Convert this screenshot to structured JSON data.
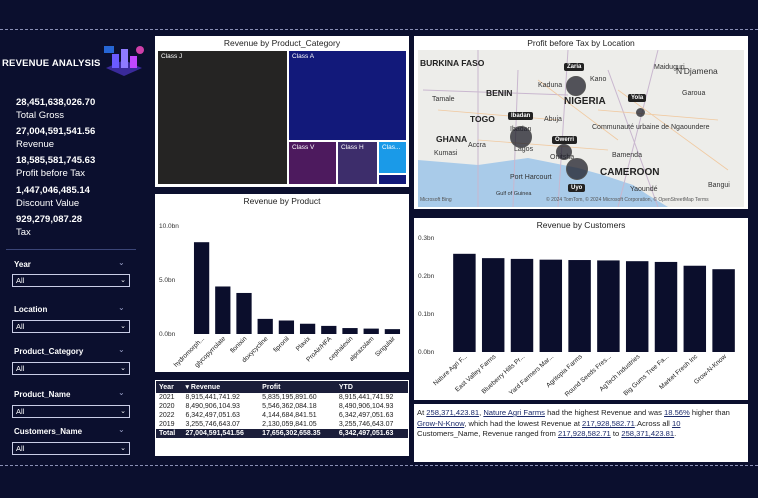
{
  "sidebar": {
    "title": "REVENUE ANALYSIS",
    "kpis": [
      {
        "value": "28,451,638,026.70",
        "label": "Total Gross"
      },
      {
        "value": "27,004,591,541.56",
        "label": "Revenue"
      },
      {
        "value": "18,585,581,745.63",
        "label": "Profit before Tax"
      },
      {
        "value": "1,447,046,485.14",
        "label": "Discount Value"
      },
      {
        "value": "929,279,087.28",
        "label": "Tax"
      }
    ],
    "filters": [
      {
        "label": "Year",
        "value": "All"
      },
      {
        "label": "Location",
        "value": "All"
      },
      {
        "label": "Product_Category",
        "value": "All"
      },
      {
        "label": "Product_Name",
        "value": "All"
      },
      {
        "label": "Customers_Name",
        "value": "All"
      }
    ]
  },
  "treemap": {
    "title": "Revenue by Product_Category",
    "cells": [
      {
        "label": "Class J",
        "color": "#252423"
      },
      {
        "label": "Class A",
        "color": "#12197a"
      },
      {
        "label": "Class V",
        "color": "#4d1a5e"
      },
      {
        "label": "Class H",
        "color": "#3d2d6b"
      },
      {
        "label": "Clas...",
        "color": "#1a9ae8"
      }
    ]
  },
  "map": {
    "title": "Profit before Tax by Location",
    "countries": [
      "BURKINA FASO",
      "BENIN",
      "TOGO",
      "GHANA",
      "NIGERIA",
      "CAMEROON"
    ],
    "places": [
      "Kano",
      "Maiduguri",
      "N'Djamena",
      "Kaduna",
      "Abuja",
      "Communauté urbaine de Ngaoundere",
      "Ibadan",
      "Lagos",
      "Onitsha",
      "Port Harcourt",
      "Bamenda",
      "Yaoundé",
      "Kumasi",
      "Accra",
      "Garoua",
      "Bangui",
      "Tamale",
      "Gulf of Guinea"
    ],
    "pins": [
      "Zaria",
      "Yola",
      "Ibadan",
      "Owerri",
      "Uyo"
    ],
    "attribution": "© 2024 TomTom, © 2024 Microsoft Corporation, © OpenStreetMap  Terms",
    "brand": "Microsoft Bing"
  },
  "table": {
    "headers": [
      "Year",
      "Revenue",
      "Profit",
      "YTD"
    ],
    "rows": [
      [
        "2021",
        "8,915,441,741.92",
        "5,835,195,891.60",
        "8,915,441,741.92"
      ],
      [
        "2020",
        "8,490,906,104.93",
        "5,546,362,084.18",
        "8,490,906,104.93"
      ],
      [
        "2022",
        "6,342,497,051.63",
        "4,144,684,841.51",
        "6,342,497,051.63"
      ],
      [
        "2019",
        "3,255,746,643.07",
        "2,130,059,841.05",
        "3,255,746,643.07"
      ]
    ],
    "total": [
      "Total",
      "27,004,591,541.56",
      "17,656,302,658.35",
      "6,342,497,051.63"
    ]
  },
  "narrative": {
    "p1": "At ",
    "v1": "258,371,423.81",
    "p2": ", ",
    "v2": "Nature Agri Farms",
    "p3": " had the highest Revenue and was ",
    "v3": "18.56%",
    "p4": " higher than ",
    "v4": "Grow-N-Know",
    "p5": ", which had the lowest Revenue at ",
    "v5": "217,928,582.71",
    "p6": ".Across all ",
    "v6": "10",
    "p7": " Customers_Name, Revenue ranged from ",
    "v7": "217,928,582.71",
    "p8": " to ",
    "v8": "258,371,423.81",
    "p9": "."
  },
  "chart_data": [
    {
      "type": "bar",
      "title": "Revenue by Product",
      "categories": [
        "hydromorph...",
        "glycopyrrolate",
        "flonixin",
        "doxycycline",
        "fipronil",
        "Plavix",
        "ProAir/HFA",
        "cephalexin",
        "alprazolam",
        "Singulair"
      ],
      "values": [
        8.5,
        4.4,
        3.8,
        1.4,
        1.25,
        0.95,
        0.75,
        0.55,
        0.5,
        0.45
      ],
      "ticks": [
        "0.0bn",
        "5.0bn",
        "10.0bn"
      ],
      "ylim": [
        0,
        10
      ],
      "color": "#0b0e2c"
    },
    {
      "type": "bar",
      "title": "Revenue by Customers",
      "categories": [
        "Nature Agri F...",
        "East Valley Farms",
        "Blueberry Hills Pr...",
        "Yard Farmers Mar...",
        "Agritopia Farms",
        "Round Seeds Fres...",
        "AgTech Industries",
        "Big Gums Tree Fa...",
        "Market Fresh Inc",
        "Grow-N-Know"
      ],
      "values": [
        0.2584,
        0.247,
        0.245,
        0.243,
        0.242,
        0.241,
        0.239,
        0.237,
        0.227,
        0.2179
      ],
      "ticks": [
        "0.0bn",
        "0.1bn",
        "0.2bn",
        "0.3bn"
      ],
      "ylim": [
        0,
        0.3
      ],
      "color": "#0b0e2c"
    }
  ]
}
